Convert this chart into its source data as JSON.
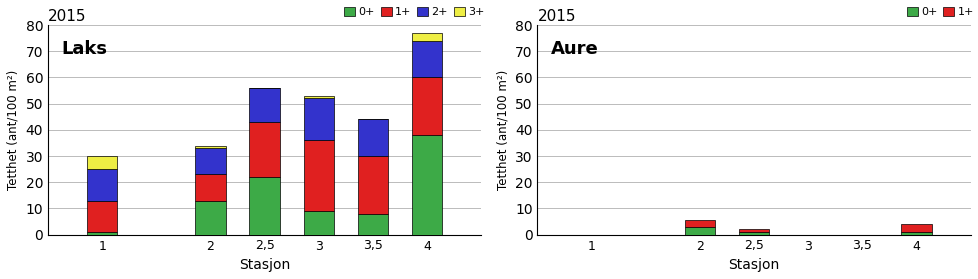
{
  "title": "2015",
  "xlabel": "Stasjon",
  "ylabel": "Tetthet (ant/100 m²)",
  "ylim": [
    0,
    80
  ],
  "yticks": [
    0,
    10,
    20,
    30,
    40,
    50,
    60,
    70,
    80
  ],
  "stations": [
    1,
    2,
    2.5,
    3,
    3.5,
    4
  ],
  "bar_width": 0.28,
  "laks": {
    "label": "Laks",
    "0+": [
      1,
      13,
      22,
      9,
      8,
      38
    ],
    "1+": [
      12,
      10,
      21,
      27,
      22,
      22
    ],
    "2+": [
      12,
      10,
      13,
      16,
      14,
      14
    ],
    "3+": [
      5,
      1,
      0,
      1,
      0,
      3
    ]
  },
  "aure": {
    "label": "Aure",
    "0+": [
      0,
      3,
      1,
      0,
      0,
      1
    ],
    "1+": [
      0,
      2.5,
      1,
      0,
      0,
      3
    ]
  },
  "colors": {
    "0+": "#3DAA47",
    "1+": "#E02020",
    "2+": "#3333CC",
    "3+": "#EEEE44"
  },
  "legend_laks": [
    "0+",
    "1+",
    "2+",
    "3+"
  ],
  "legend_aure": [
    "0+",
    "1+"
  ],
  "bg_color": "#FFFFFF",
  "grid_color": "#BBBBBB"
}
